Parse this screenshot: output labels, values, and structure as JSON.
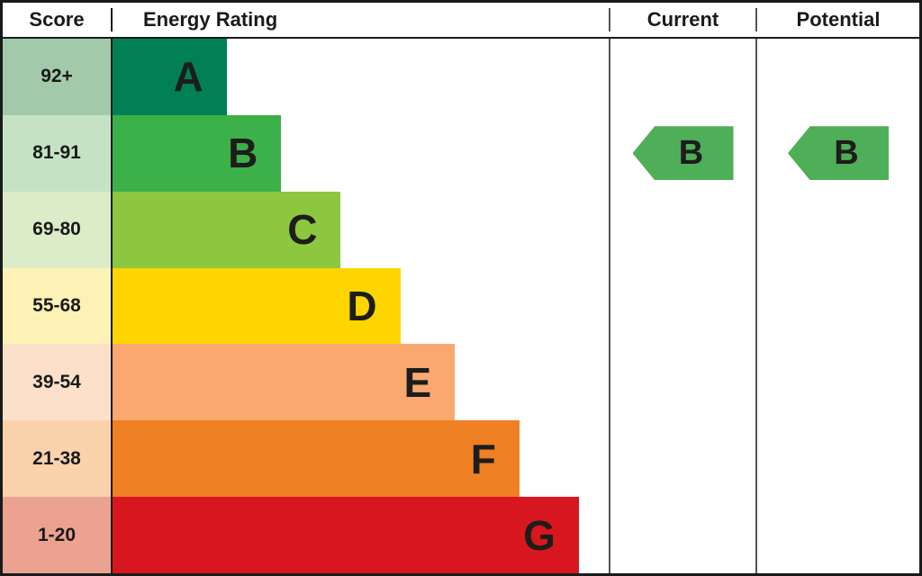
{
  "header": {
    "score": "Score",
    "energy_rating": "Energy Rating",
    "current": "Current",
    "potential": "Potential"
  },
  "chart_data": {
    "type": "bar",
    "title": "EPC Energy Rating chart",
    "categories": [
      "92+",
      "81-91",
      "69-80",
      "55-68",
      "39-54",
      "21-38",
      "1-20"
    ],
    "bands": [
      {
        "score": "92+",
        "letter": "A",
        "color": "#008054",
        "tint": "#a3c9ab",
        "width": "23%"
      },
      {
        "score": "81-91",
        "letter": "B",
        "color": "#3cb049",
        "tint": "#c5e3c4",
        "width": "34%"
      },
      {
        "score": "69-80",
        "letter": "C",
        "color": "#8dc63f",
        "tint": "#dcebc8",
        "width": "46%"
      },
      {
        "score": "55-68",
        "letter": "D",
        "color": "#ffd500",
        "tint": "#fdf2b5",
        "width": "58%"
      },
      {
        "score": "39-54",
        "letter": "E",
        "color": "#f9a870",
        "tint": "#fce0c9",
        "width": "69%"
      },
      {
        "score": "21-38",
        "letter": "F",
        "color": "#ef8023",
        "tint": "#fad3ad",
        "width": "82%"
      },
      {
        "score": "1-20",
        "letter": "G",
        "color": "#d8161f",
        "tint": "#eba291",
        "width": "94%"
      }
    ],
    "current": {
      "letter": "B",
      "band_score": "81-91",
      "arrow_color": "#4fae58"
    },
    "potential": {
      "letter": "B",
      "band_score": "81-91",
      "arrow_color": "#4fae58"
    },
    "legend_position": "none",
    "grid": false
  }
}
